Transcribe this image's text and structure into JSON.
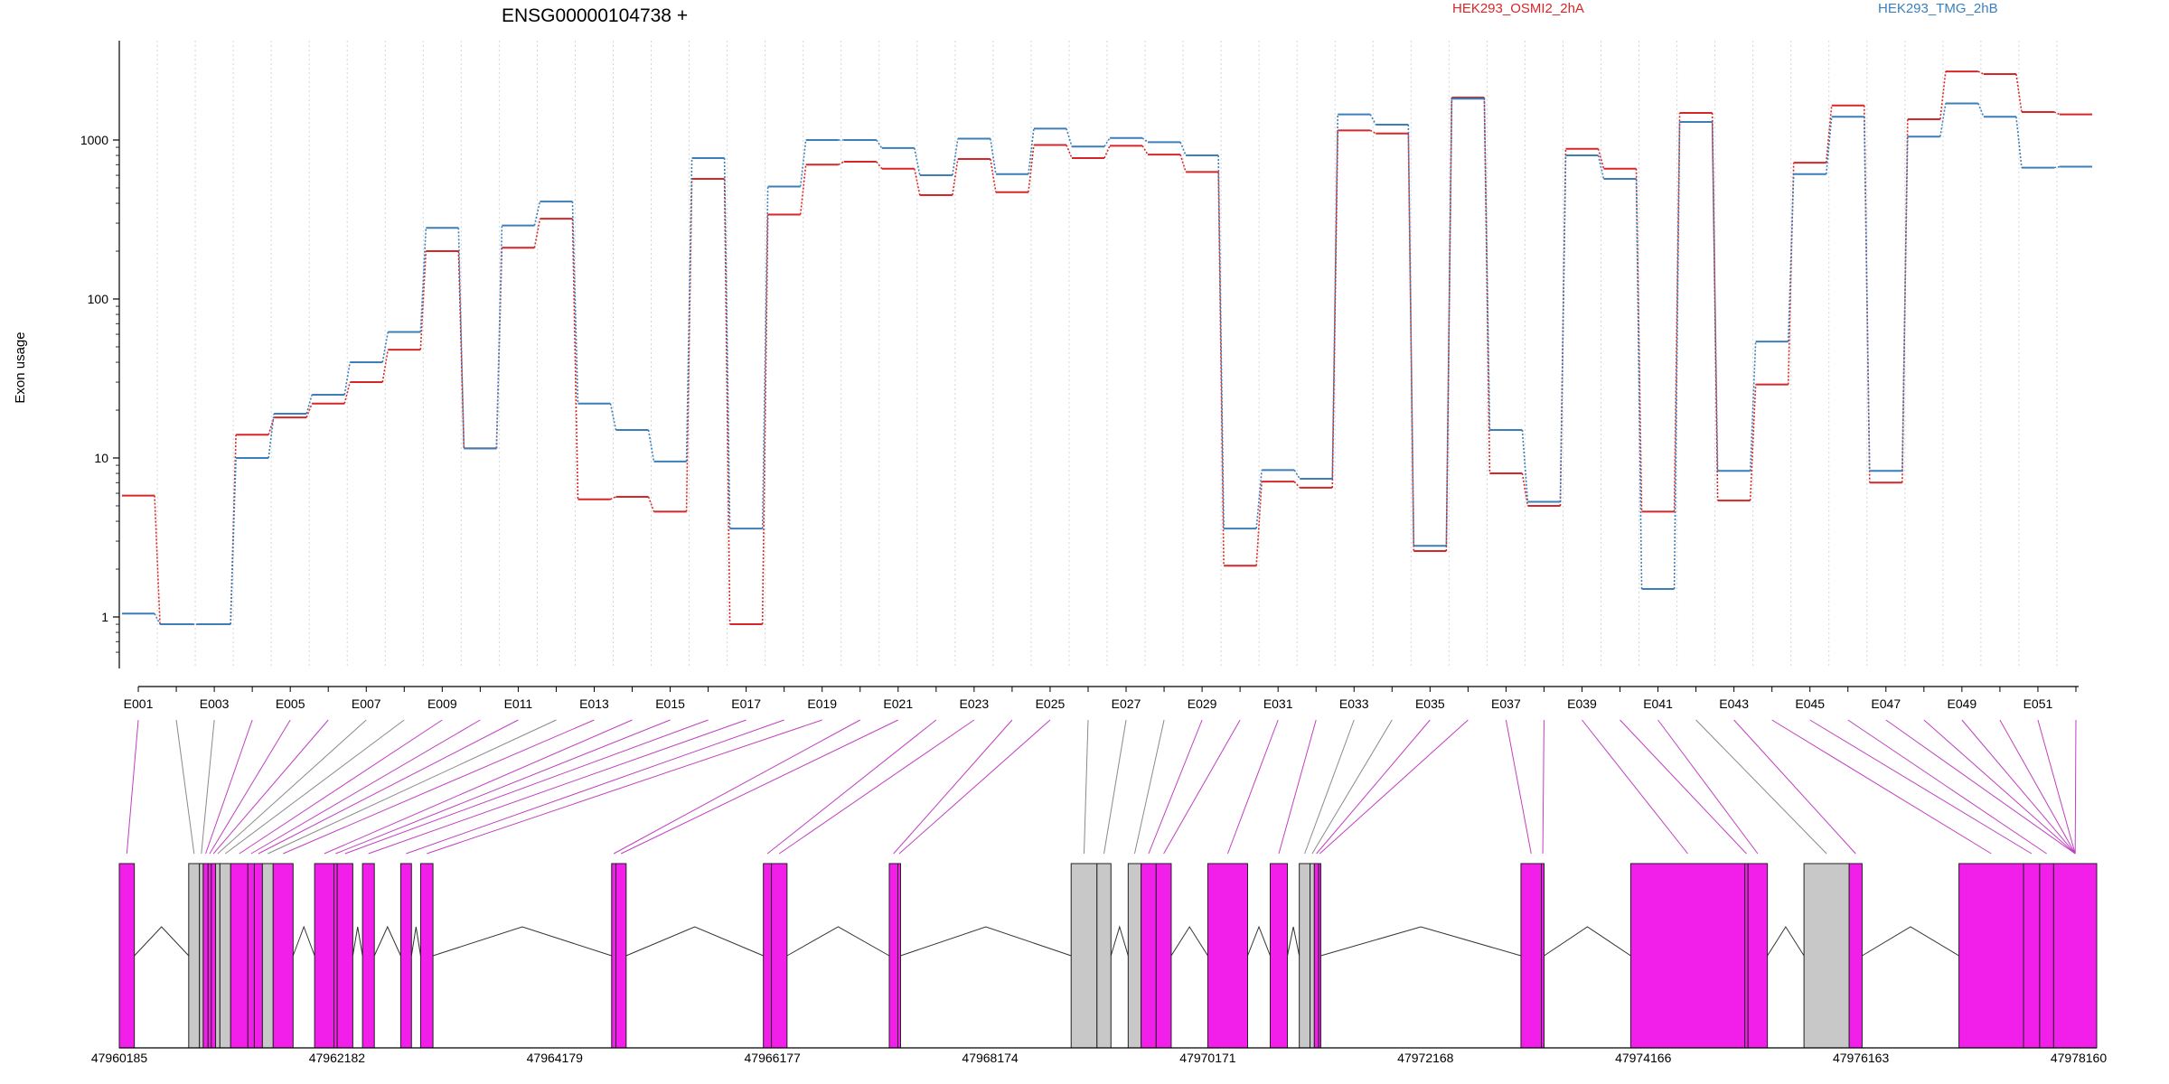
{
  "chart_data": {
    "type": "line",
    "title": "ENSG00000104738 +",
    "xlabel": "",
    "ylabel": "Exon usage",
    "y_scale": "log",
    "ylim": [
      0.6,
      3500
    ],
    "y_ticks": [
      1,
      10,
      100,
      1000
    ],
    "legend_placement": "top-right",
    "grid": "vertical dotted lines at exon boundaries",
    "categories": [
      "E001",
      "E002",
      "E003",
      "E004",
      "E005",
      "E006",
      "E007",
      "E008",
      "E009",
      "E010",
      "E011",
      "E012",
      "E013",
      "E014",
      "E015",
      "E016",
      "E017",
      "E018",
      "E019",
      "E020",
      "E021",
      "E022",
      "E023",
      "E024",
      "E025",
      "E026",
      "E027",
      "E028",
      "E029",
      "E030",
      "E031",
      "E032",
      "E033",
      "E034",
      "E035",
      "E036",
      "E037",
      "E038",
      "E039",
      "E040",
      "E041",
      "E042",
      "E043",
      "E044",
      "E045",
      "E046",
      "E047",
      "E048",
      "E049",
      "E050",
      "E051",
      "E052"
    ],
    "series": [
      {
        "name": "HEK293_OSMI2_2hA",
        "color": "#d62728",
        "values": [
          5.8,
          0.9,
          0.9,
          14,
          18,
          22,
          30,
          48,
          200,
          11.5,
          210,
          320,
          5.5,
          5.7,
          4.6,
          570,
          0.9,
          340,
          700,
          730,
          660,
          450,
          760,
          470,
          930,
          770,
          920,
          810,
          630,
          2.1,
          7.1,
          6.5,
          1150,
          1100,
          2.6,
          1850,
          8,
          5,
          880,
          660,
          4.6,
          1480,
          5.4,
          29,
          720,
          1650,
          7,
          1350,
          2700,
          2600,
          1500,
          1450
        ]
      },
      {
        "name": "HEK293_TMG_2hB",
        "color": "#3c7fb8",
        "values": [
          1.05,
          0.9,
          0.9,
          10,
          19,
          25,
          40,
          62,
          280,
          11.5,
          290,
          410,
          22,
          15,
          9.5,
          770,
          3.6,
          510,
          1000,
          1000,
          890,
          600,
          1020,
          610,
          1180,
          910,
          1030,
          970,
          800,
          3.6,
          8.4,
          7.4,
          1450,
          1250,
          2.8,
          1820,
          15,
          5.3,
          800,
          570,
          1.5,
          1300,
          8.3,
          54,
          610,
          1400,
          8.3,
          1050,
          1700,
          1400,
          670,
          680
        ]
      }
    ],
    "x_axis_labels": [
      "E001",
      "E003",
      "E005",
      "E007",
      "E009",
      "E011",
      "E013",
      "E015",
      "E017",
      "E019",
      "E021",
      "E023",
      "E025",
      "E027",
      "E029",
      "E031",
      "E033",
      "E035",
      "E037",
      "E039",
      "E041",
      "E043",
      "E045",
      "E047",
      "E049",
      "E051"
    ],
    "gene_model": {
      "coordinate_range": [
        47960185,
        47978160
      ],
      "coordinate_ticks": [
        47960185,
        47962182,
        47964179,
        47966177,
        47968174,
        47970171,
        47972168,
        47974166,
        47976163,
        47978160
      ],
      "highlight_color": "#f21ee9",
      "neutral_color": "#c8c8c8",
      "exons": [
        {
          "id": "E001",
          "start": 47960185,
          "end": 47960325,
          "state": "highlight"
        },
        {
          "id": "E002",
          "start": 47960830,
          "end": 47960930,
          "state": "neutral"
        },
        {
          "id": "E003",
          "start": 47960930,
          "end": 47960965,
          "state": "neutral"
        },
        {
          "id": "E004",
          "start": 47960965,
          "end": 47961010,
          "state": "highlight"
        },
        {
          "id": "E005",
          "start": 47961010,
          "end": 47961040,
          "state": "highlight"
        },
        {
          "id": "E006",
          "start": 47961040,
          "end": 47961080,
          "state": "highlight"
        },
        {
          "id": "E007",
          "start": 47961080,
          "end": 47961120,
          "state": "neutral"
        },
        {
          "id": "E008",
          "start": 47961120,
          "end": 47961220,
          "state": "neutral"
        },
        {
          "id": "E009",
          "start": 47961220,
          "end": 47961380,
          "state": "highlight"
        },
        {
          "id": "E010",
          "start": 47961380,
          "end": 47961440,
          "state": "highlight"
        },
        {
          "id": "E011",
          "start": 47961440,
          "end": 47961515,
          "state": "highlight"
        },
        {
          "id": "E012",
          "start": 47961515,
          "end": 47961615,
          "state": "neutral"
        },
        {
          "id": "E013",
          "start": 47961615,
          "end": 47961800,
          "state": "highlight"
        },
        {
          "id": "E014",
          "start": 47962000,
          "end": 47962180,
          "state": "highlight"
        },
        {
          "id": "E015",
          "start": 47962180,
          "end": 47962210,
          "state": "highlight"
        },
        {
          "id": "E016",
          "start": 47962210,
          "end": 47962355,
          "state": "highlight"
        },
        {
          "id": "E017",
          "start": 47962445,
          "end": 47962555,
          "state": "highlight"
        },
        {
          "id": "E018",
          "start": 47962800,
          "end": 47962900,
          "state": "highlight"
        },
        {
          "id": "E019",
          "start": 47962985,
          "end": 47963100,
          "state": "highlight"
        },
        {
          "id": "E020",
          "start": 47964760,
          "end": 47964800,
          "state": "highlight"
        },
        {
          "id": "E021",
          "start": 47964800,
          "end": 47964895,
          "state": "highlight"
        },
        {
          "id": "E022",
          "start": 47966170,
          "end": 47966245,
          "state": "highlight"
        },
        {
          "id": "E023",
          "start": 47966245,
          "end": 47966390,
          "state": "highlight"
        },
        {
          "id": "E024",
          "start": 47967340,
          "end": 47967420,
          "state": "highlight"
        },
        {
          "id": "E025",
          "start": 47967420,
          "end": 47967445,
          "state": "highlight"
        },
        {
          "id": "E026",
          "start": 47969030,
          "end": 47969270,
          "state": "neutral"
        },
        {
          "id": "E027",
          "start": 47969270,
          "end": 47969400,
          "state": "neutral"
        },
        {
          "id": "E028",
          "start": 47969560,
          "end": 47969680,
          "state": "neutral"
        },
        {
          "id": "E029",
          "start": 47969680,
          "end": 47969820,
          "state": "highlight"
        },
        {
          "id": "E030",
          "start": 47969820,
          "end": 47969960,
          "state": "highlight"
        },
        {
          "id": "E031",
          "start": 47970300,
          "end": 47970670,
          "state": "highlight"
        },
        {
          "id": "E032",
          "start": 47970880,
          "end": 47971040,
          "state": "highlight"
        },
        {
          "id": "E033",
          "start": 47971150,
          "end": 47971250,
          "state": "neutral"
        },
        {
          "id": "E034",
          "start": 47971250,
          "end": 47971290,
          "state": "neutral"
        },
        {
          "id": "E035",
          "start": 47971290,
          "end": 47971330,
          "state": "highlight"
        },
        {
          "id": "E036",
          "start": 47971330,
          "end": 47971350,
          "state": "highlight"
        },
        {
          "id": "E037",
          "start": 47973210,
          "end": 47973400,
          "state": "highlight"
        },
        {
          "id": "E038",
          "start": 47973400,
          "end": 47973425,
          "state": "highlight"
        },
        {
          "id": "E039",
          "start": 47974230,
          "end": 47975290,
          "state": "highlight"
        },
        {
          "id": "E040",
          "start": 47975290,
          "end": 47975320,
          "state": "highlight"
        },
        {
          "id": "E041",
          "start": 47975320,
          "end": 47975500,
          "state": "highlight"
        },
        {
          "id": "E042",
          "start": 47975840,
          "end": 47976260,
          "state": "neutral"
        },
        {
          "id": "E043",
          "start": 47976260,
          "end": 47976380,
          "state": "highlight"
        },
        {
          "id": "E044",
          "start": 47977280,
          "end": 47977880,
          "state": "highlight"
        },
        {
          "id": "E045",
          "start": 47977880,
          "end": 47978030,
          "state": "highlight"
        },
        {
          "id": "E046",
          "start": 47978030,
          "end": 47978160,
          "state": "highlight"
        },
        {
          "id": "E047",
          "start": 47978160,
          "end": 47978560,
          "state": "highlight"
        }
      ]
    }
  }
}
